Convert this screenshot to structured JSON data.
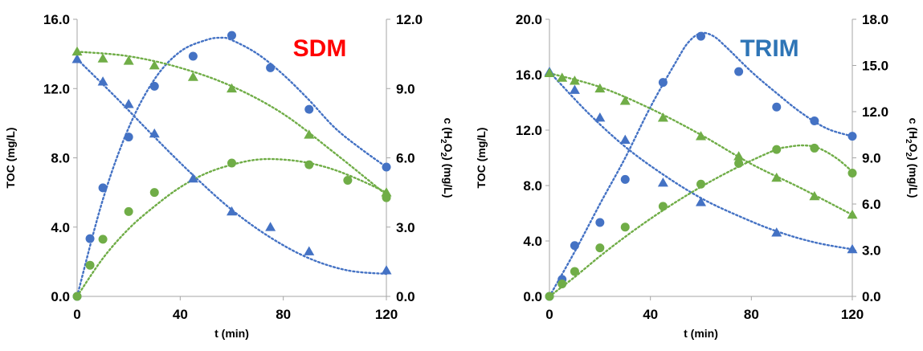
{
  "chart_data": [
    {
      "type": "scatter",
      "label": "SDM",
      "label_color": "#ff0000",
      "xlabel": "t (min)",
      "ylabel": "TOC (mg/L)",
      "y2label": "c (H2O2) (mg/L)",
      "x_ticks": [
        "0",
        "40",
        "80",
        "120"
      ],
      "y_ticks": [
        "0.0",
        "4.0",
        "8.0",
        "12.0",
        "16.0"
      ],
      "y2_ticks": [
        "0.0",
        "3.0",
        "6.0",
        "9.0",
        "12.0"
      ],
      "xlim": [
        0,
        120
      ],
      "ylim": [
        0,
        16
      ],
      "y2lim": [
        0,
        12
      ],
      "grid": false,
      "legend": "none",
      "series": [
        {
          "axis": "left",
          "marker": "triangle",
          "color": "#4472c4",
          "x": [
            0,
            10,
            20,
            30,
            45,
            60,
            75,
            90,
            120
          ],
          "y": [
            13.7,
            12.4,
            11.1,
            9.4,
            6.8,
            4.9,
            4.0,
            2.6,
            1.5
          ]
        },
        {
          "axis": "right",
          "marker": "circle",
          "color": "#4472c4",
          "x": [
            0,
            5,
            10,
            20,
            30,
            45,
            60,
            75,
            90,
            120
          ],
          "y": [
            0.0,
            2.5,
            4.7,
            6.9,
            9.1,
            10.4,
            11.3,
            9.9,
            8.1,
            5.6
          ]
        },
        {
          "axis": "right",
          "marker": "triangle",
          "color": "#70ad47",
          "x": [
            0,
            10,
            20,
            30,
            45,
            60,
            90,
            120
          ],
          "y": [
            10.6,
            10.3,
            10.2,
            10.0,
            9.5,
            9.0,
            7.0,
            4.5
          ]
        },
        {
          "axis": "left",
          "marker": "circle",
          "color": "#70ad47",
          "x": [
            0,
            5,
            10,
            20,
            30,
            60,
            90,
            105,
            120
          ],
          "y": [
            0.0,
            1.8,
            3.3,
            4.9,
            6.0,
            7.7,
            7.6,
            6.7,
            5.7
          ]
        }
      ],
      "trendlines": [
        {
          "axis": "left",
          "color": "#4472c4",
          "x": [
            0,
            15,
            30,
            45,
            60,
            75,
            90,
            105,
            120
          ],
          "y": [
            13.7,
            11.5,
            9.2,
            7.0,
            5.0,
            3.4,
            2.2,
            1.5,
            1.3
          ]
        },
        {
          "axis": "right",
          "color": "#4472c4",
          "x": [
            0,
            10,
            20,
            30,
            40,
            50,
            56,
            60,
            70,
            80,
            90,
            100,
            110,
            120
          ],
          "y": [
            0.0,
            4.2,
            7.3,
            9.4,
            10.6,
            11.1,
            11.2,
            11.1,
            10.5,
            9.6,
            8.5,
            7.3,
            6.4,
            5.6
          ]
        },
        {
          "axis": "right",
          "color": "#70ad47",
          "x": [
            0,
            20,
            40,
            60,
            80,
            100,
            120
          ],
          "y": [
            10.6,
            10.4,
            9.9,
            9.1,
            7.9,
            6.2,
            4.4
          ]
        },
        {
          "axis": "left",
          "color": "#70ad47",
          "x": [
            0,
            10,
            20,
            30,
            40,
            50,
            60,
            70,
            80,
            90,
            100,
            110,
            120
          ],
          "y": [
            0.0,
            2.2,
            3.9,
            5.2,
            6.3,
            7.1,
            7.6,
            7.9,
            7.9,
            7.7,
            7.3,
            6.7,
            6.0
          ]
        }
      ]
    },
    {
      "type": "scatter",
      "label": "TRIM",
      "label_color": "#2e75b6",
      "xlabel": "t (min)",
      "ylabel": "TOC (mg/L)",
      "y2label": "c (H2O2) (mg/L)",
      "x_ticks": [
        "0",
        "40",
        "80",
        "120"
      ],
      "y_ticks": [
        "0.0",
        "4.0",
        "8.0",
        "12.0",
        "16.0",
        "20.0"
      ],
      "y2_ticks": [
        "0.0",
        "3.0",
        "6.0",
        "9.0",
        "12.0",
        "15.0",
        "18.0"
      ],
      "xlim": [
        0,
        120
      ],
      "ylim": [
        0,
        20
      ],
      "y2lim": [
        0,
        18
      ],
      "grid": false,
      "legend": "none",
      "series": [
        {
          "axis": "left",
          "marker": "triangle",
          "color": "#4472c4",
          "x": [
            0,
            10,
            20,
            30,
            45,
            60,
            90,
            120
          ],
          "y": [
            16.2,
            14.9,
            12.9,
            11.3,
            8.2,
            6.8,
            4.6,
            3.4
          ]
        },
        {
          "axis": "right",
          "marker": "circle",
          "color": "#4472c4",
          "x": [
            0,
            5,
            10,
            20,
            30,
            45,
            60,
            75,
            90,
            105,
            120
          ],
          "y": [
            0.0,
            1.1,
            3.3,
            4.8,
            7.6,
            13.9,
            16.9,
            14.6,
            12.3,
            11.4,
            10.4
          ]
        },
        {
          "axis": "right",
          "marker": "triangle",
          "color": "#70ad47",
          "x": [
            0,
            5,
            10,
            20,
            30,
            45,
            60,
            75,
            90,
            105,
            120
          ],
          "y": [
            14.5,
            14.2,
            14.0,
            13.5,
            12.7,
            11.6,
            10.4,
            9.1,
            7.7,
            6.5,
            5.3
          ]
        },
        {
          "axis": "left",
          "marker": "circle",
          "color": "#70ad47",
          "x": [
            0,
            5,
            10,
            20,
            30,
            45,
            60,
            75,
            90,
            105,
            120
          ],
          "y": [
            0.0,
            0.9,
            1.8,
            3.5,
            5.0,
            6.5,
            8.1,
            9.6,
            10.6,
            10.7,
            8.9
          ]
        }
      ],
      "trendlines": [
        {
          "axis": "left",
          "color": "#4472c4",
          "x": [
            0,
            15,
            30,
            45,
            60,
            75,
            90,
            105,
            120
          ],
          "y": [
            16.2,
            13.3,
            10.8,
            8.8,
            7.1,
            5.8,
            4.7,
            3.9,
            3.4
          ]
        },
        {
          "axis": "right",
          "color": "#4472c4",
          "x": [
            0,
            10,
            20,
            30,
            40,
            50,
            55,
            60,
            65,
            70,
            80,
            90,
            100,
            110,
            120
          ],
          "y": [
            0.0,
            2.9,
            6.0,
            9.0,
            12.3,
            15.2,
            16.5,
            17.1,
            16.9,
            16.2,
            14.6,
            13.2,
            11.9,
            10.9,
            10.4
          ]
        },
        {
          "axis": "right",
          "color": "#70ad47",
          "x": [
            0,
            20,
            40,
            60,
            80,
            100,
            120
          ],
          "y": [
            14.5,
            13.6,
            12.2,
            10.5,
            8.6,
            7.0,
            5.3
          ]
        },
        {
          "axis": "left",
          "color": "#70ad47",
          "x": [
            0,
            10,
            20,
            30,
            40,
            50,
            60,
            70,
            80,
            90,
            95,
            100,
            105,
            110,
            115,
            120
          ],
          "y": [
            0.0,
            1.4,
            2.9,
            4.3,
            5.6,
            6.8,
            7.9,
            8.9,
            9.8,
            10.6,
            10.8,
            10.9,
            10.8,
            10.4,
            9.8,
            9.0
          ]
        }
      ]
    }
  ]
}
